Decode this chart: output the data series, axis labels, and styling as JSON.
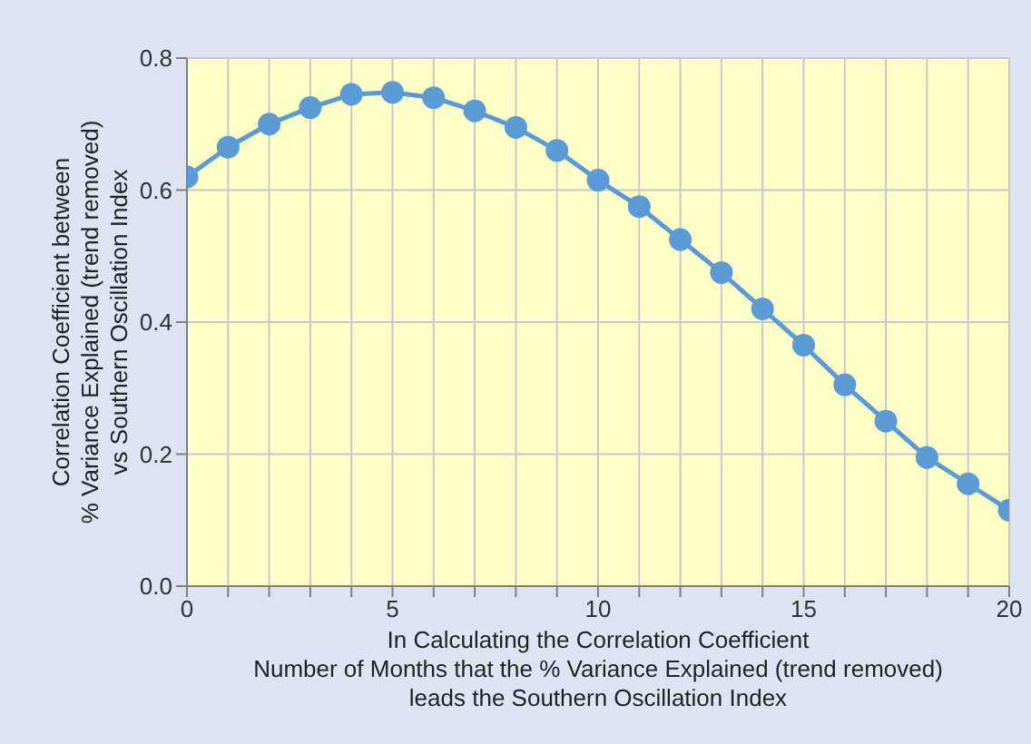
{
  "chart_data": {
    "type": "line",
    "xlabel": "In Calculating the Correlation Coefficient\nNumber of Months that the % Variance Explained  (trend removed)\nleads the Southern Oscillation Index",
    "ylabel": "Correlation Coefficient between\n% Variance Explained  (trend removed)\nvs Southern Oscillation Index",
    "x": [
      0,
      1,
      2,
      3,
      4,
      5,
      6,
      7,
      8,
      9,
      10,
      11,
      12,
      13,
      14,
      15,
      16,
      17,
      18,
      19,
      20
    ],
    "series": [
      {
        "color": "#5b9bd5",
        "values": [
          0.62,
          0.665,
          0.7,
          0.725,
          0.745,
          0.748,
          0.74,
          0.72,
          0.695,
          0.66,
          0.615,
          0.575,
          0.525,
          0.475,
          0.42,
          0.365,
          0.305,
          0.25,
          0.195,
          0.155,
          0.115
        ]
      }
    ],
    "xlim": [
      0,
      20
    ],
    "xticks": [
      0,
      {
        "value": 1,
        "label": null
      },
      {
        "value": 2,
        "label": null
      },
      {
        "value": 3,
        "label": null
      },
      {
        "value": 4,
        "label": null
      },
      5,
      {
        "value": 6,
        "label": null
      },
      {
        "value": 7,
        "label": null
      },
      {
        "value": 8,
        "label": null
      },
      {
        "value": 9,
        "label": null
      },
      10,
      {
        "value": 11,
        "label": null
      },
      {
        "value": 12,
        "label": null
      },
      {
        "value": 13,
        "label": null
      },
      {
        "value": 14,
        "label": null
      },
      15,
      {
        "value": 16,
        "label": null
      },
      {
        "value": 17,
        "label": null
      },
      {
        "value": 18,
        "label": null
      },
      {
        "value": 19,
        "label": null
      },
      20
    ],
    "ylim": [
      0,
      0.8
    ],
    "yticks": [
      {
        "value": 0,
        "label": "0.0"
      },
      {
        "value": 0.2,
        "label": "0.2"
      },
      {
        "value": 0.4,
        "label": "0.4"
      },
      {
        "value": 0.6,
        "label": "0.6"
      },
      {
        "value": 0.8,
        "label": "0.8"
      }
    ],
    "grid": true,
    "marker": "circle",
    "line_style": "solid"
  }
}
